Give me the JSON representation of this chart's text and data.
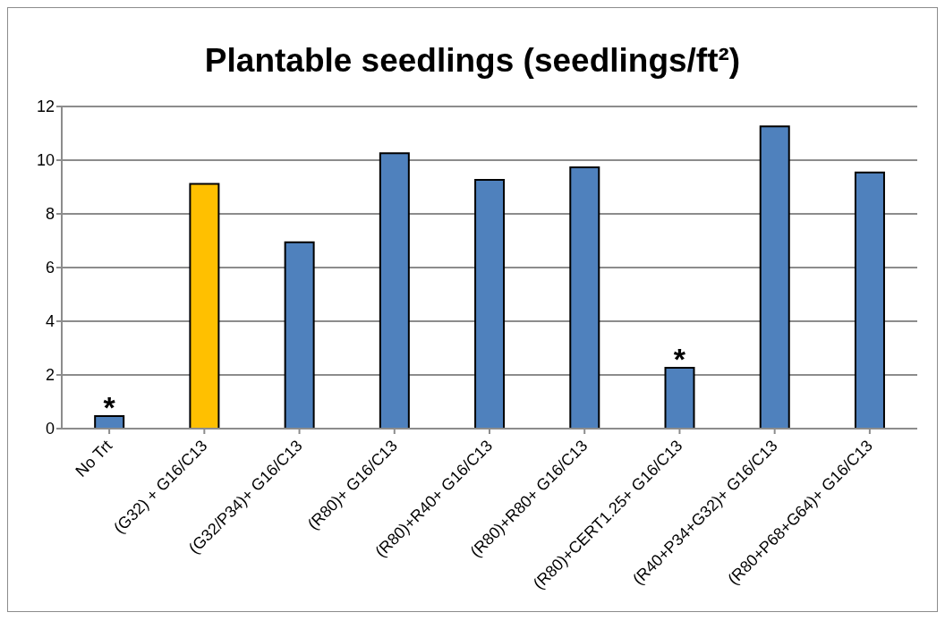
{
  "chart_data": {
    "type": "bar",
    "title": "Plantable seedlings (seedlings/ft²)",
    "categories": [
      "No Trt",
      "(G32) + G16/C13",
      "(G32/P34)+ G16/C13",
      "(R80)+ G16/C13",
      "(R80)+R40+ G16/C13",
      "(R80)+R80+ G16/C13",
      "(R80)+CERT1.25+ G16/C13",
      "(R40+P34+G32)+ G16/C13",
      "(R80+P68+G64)+ G16/C13"
    ],
    "values": [
      0.47,
      9.12,
      6.94,
      10.26,
      9.27,
      9.73,
      2.27,
      11.26,
      9.54
    ],
    "colors": [
      "#4f81bd",
      "#ffc000",
      "#4f81bd",
      "#4f81bd",
      "#4f81bd",
      "#4f81bd",
      "#4f81bd",
      "#4f81bd",
      "#4f81bd"
    ],
    "ylim": [
      0,
      12
    ],
    "yticks": [
      0,
      2,
      4,
      6,
      8,
      10,
      12
    ],
    "grid": "y",
    "legend": false,
    "annotations": [
      {
        "text": "*",
        "x": "No Trt",
        "y": 0.47
      },
      {
        "text": "*",
        "x": "(R80)+CERT1.25+ G16/C13",
        "y": 2.27
      }
    ]
  }
}
